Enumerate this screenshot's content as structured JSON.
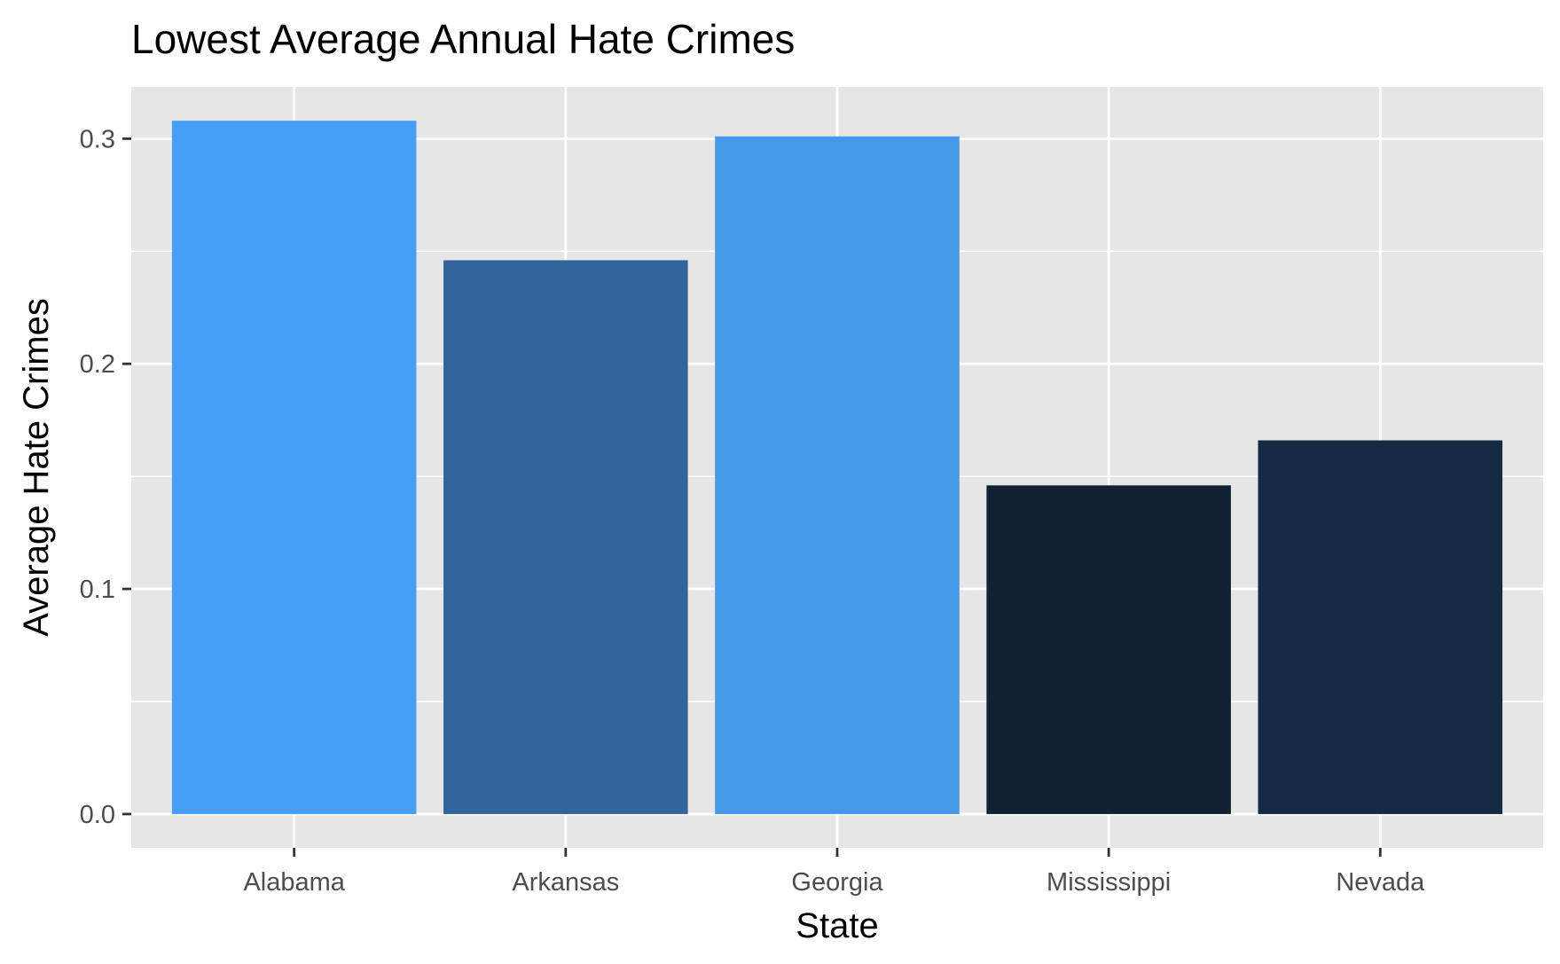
{
  "chart_data": {
    "type": "bar",
    "title": "Lowest Average Annual Hate Crimes",
    "xlabel": "State",
    "ylabel": "Average Hate Crimes",
    "categories": [
      "Alabama",
      "Arkansas",
      "Georgia",
      "Mississippi",
      "Nevada"
    ],
    "values": [
      0.308,
      0.246,
      0.301,
      0.146,
      0.166
    ],
    "bar_colors": [
      "#479ef5",
      "#31649b",
      "#4499e8",
      "#112133",
      "#172a44"
    ],
    "ylim": [
      -0.015,
      0.323
    ],
    "y_ticks": [
      0.0,
      0.1,
      0.2,
      0.3
    ],
    "y_tick_labels": [
      "0.0",
      "0.1",
      "0.2",
      "0.3"
    ],
    "grid": true,
    "panel_background": "#e6e6e6",
    "grid_color": "#ffffff",
    "legend": "none"
  }
}
